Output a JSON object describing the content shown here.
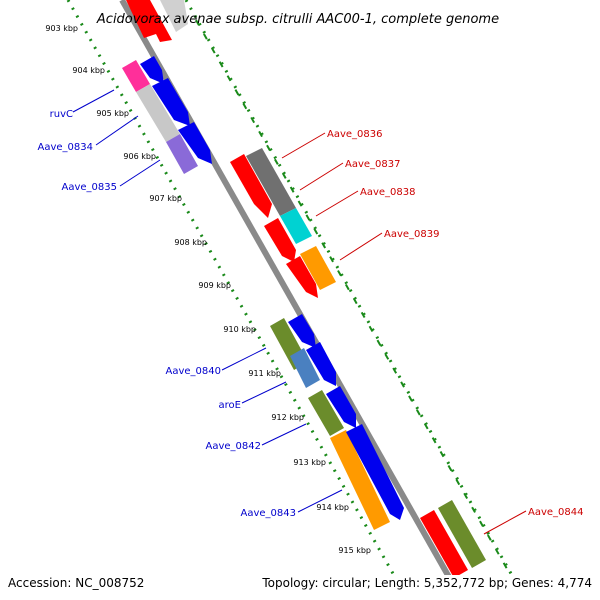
{
  "title": "Acidovorax avenae subsp. citrulli AAC00-1, complete genome",
  "accession": "Accession: NC_008752",
  "topology": "Topology: circular; Length: 5,352,772 bp; Genes: 4,774",
  "ticks": [
    "903 kbp",
    "904 kbp",
    "905 kbp",
    "906 kbp",
    "907 kbp",
    "908 kbp",
    "909 kbp",
    "910 kbp",
    "911 kbp",
    "912 kbp",
    "913 kbp",
    "914 kbp",
    "915 kbp"
  ],
  "gene_labels_left": [
    "ruvC",
    "Aave_0834",
    "Aave_0835",
    "Aave_0840",
    "aroE",
    "Aave_0842",
    "Aave_0843"
  ],
  "gene_labels_right": [
    "Aave_0836",
    "Aave_0837",
    "Aave_0838",
    "Aave_0839",
    "Aave_0844"
  ],
  "colors": {
    "backbone": "#8a8a8a",
    "track_dots": "#1a8a1a",
    "label_left": "#0000cc",
    "label_right": "#cc0000"
  }
}
